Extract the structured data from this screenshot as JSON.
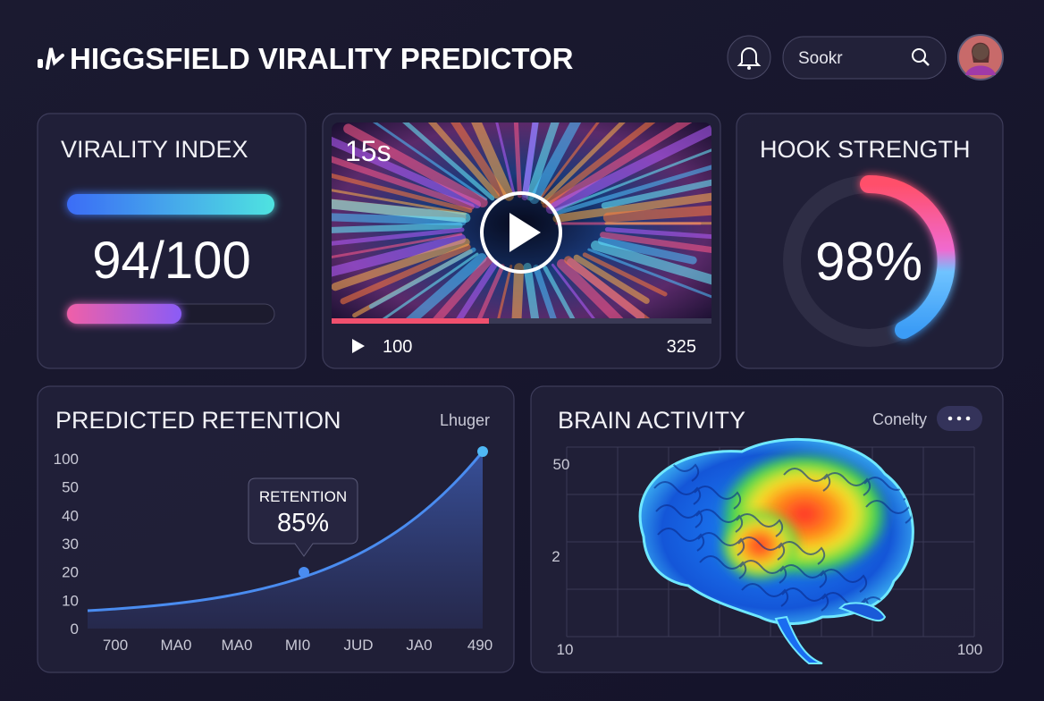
{
  "header": {
    "title": "HIGGSFIELD VIRALITY PREDICTOR",
    "search": "Sookr"
  },
  "virality_index": {
    "title": "VIRALITY INDEX",
    "value": "94/100"
  },
  "video": {
    "duration": "15s",
    "start": "100",
    "end": "325"
  },
  "hook_strength": {
    "title": "HOOK STRENGTH",
    "value": "98%"
  },
  "retention": {
    "title": "PREDICTED RETENTION",
    "legend": "Lhuger",
    "yticks": [
      "100",
      "50",
      "40",
      "30",
      "20",
      "10",
      "0"
    ],
    "xticks": [
      "700",
      "MA0",
      "MA0",
      "MI0",
      "JUD",
      "JA0",
      "490"
    ],
    "tooltip": {
      "label": "RETENTION",
      "value": "85%"
    }
  },
  "brain": {
    "title": "BRAIN ACTIVITY",
    "filter": "Conelty",
    "yticks": [
      "50",
      "2"
    ],
    "xticks": [
      "10",
      "100"
    ]
  }
}
